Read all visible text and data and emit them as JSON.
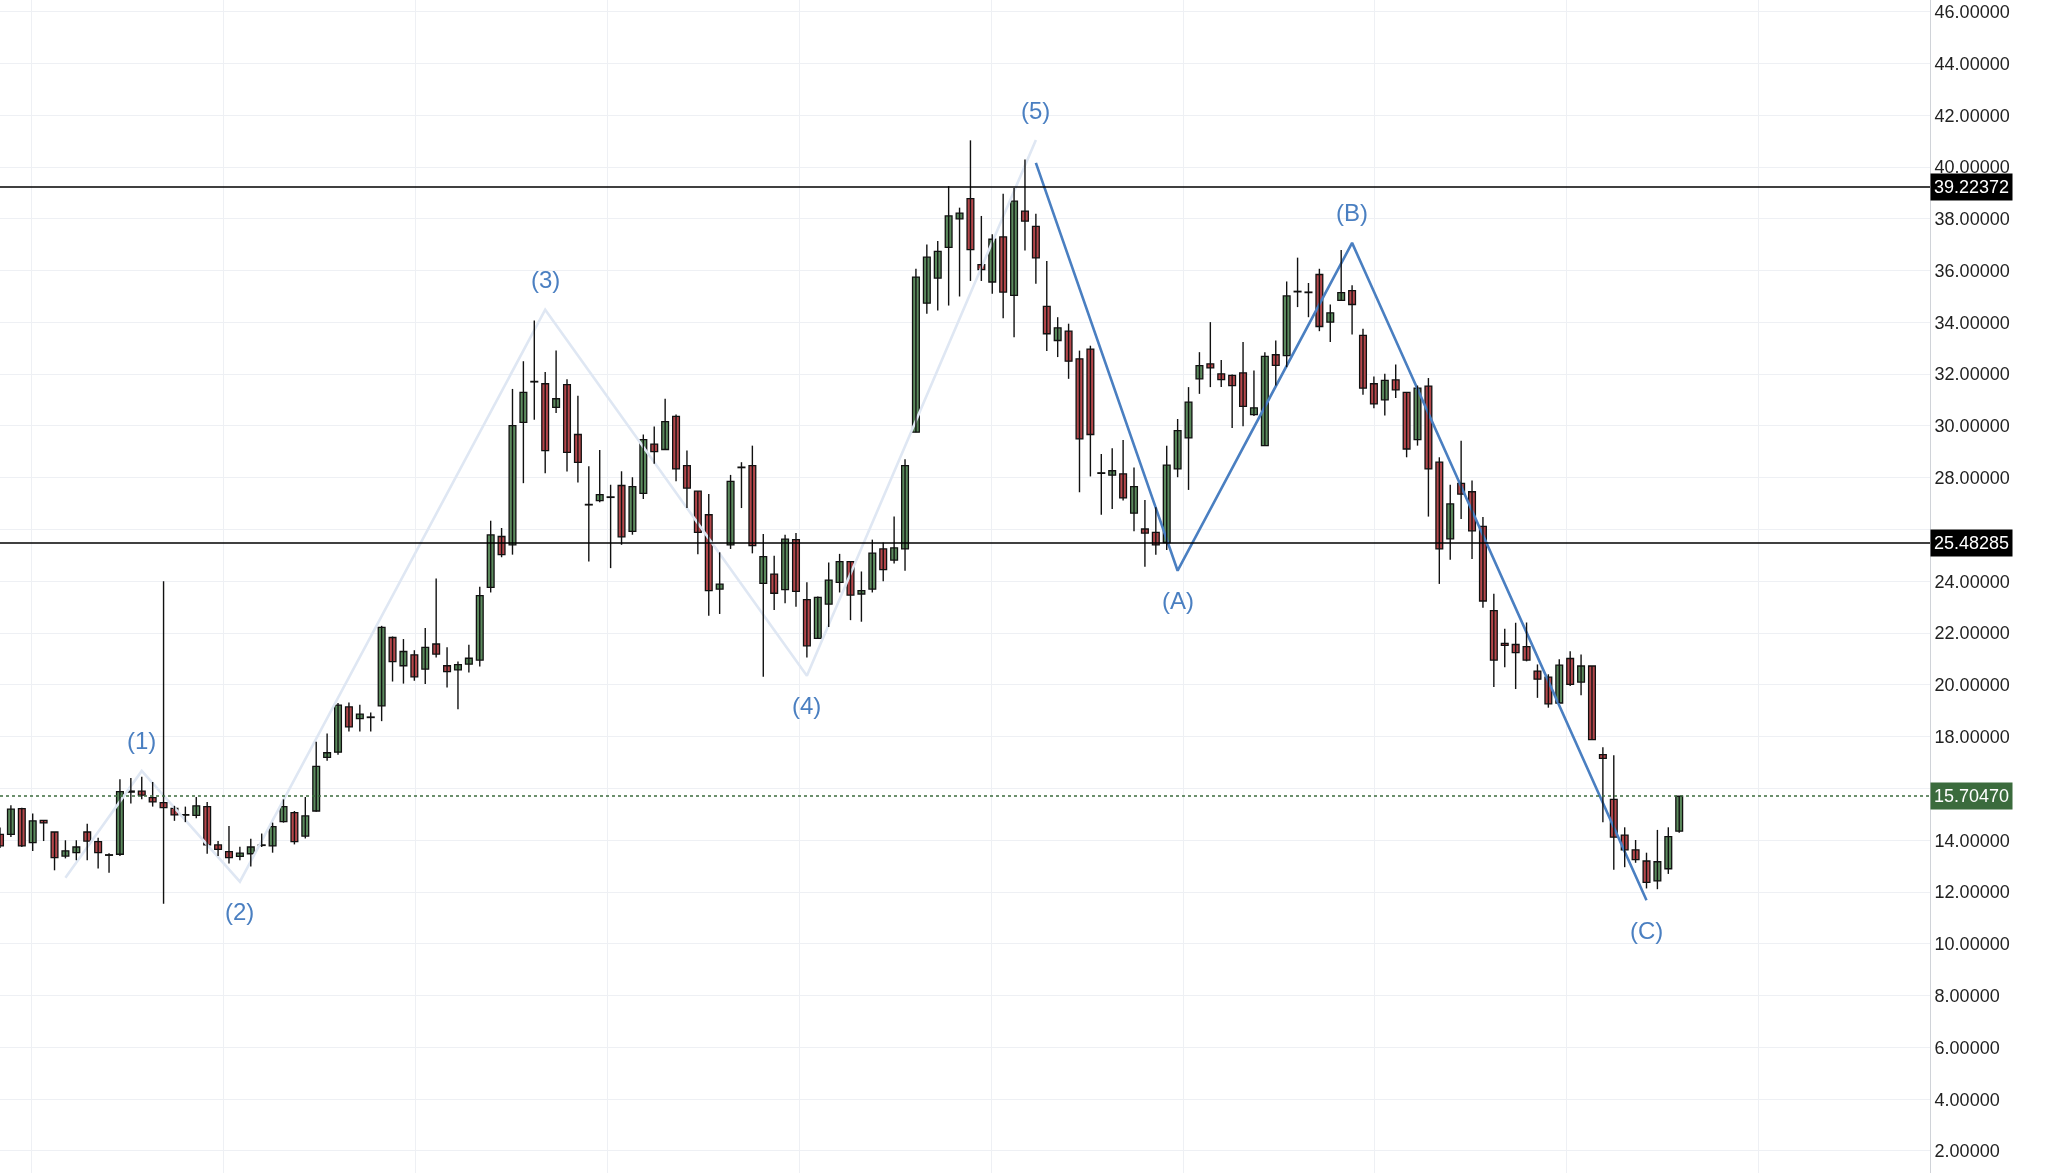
{
  "chart_data": {
    "type": "candlestick",
    "categories": [
      null,
      null,
      null,
      null,
      null,
      null,
      null,
      null,
      null,
      null,
      null,
      null,
      null,
      null,
      null,
      null,
      null,
      null,
      null,
      null,
      null,
      null,
      null,
      null,
      null,
      null,
      null,
      null,
      null,
      null,
      null,
      null,
      null,
      null,
      null,
      null,
      null,
      null,
      null,
      null,
      null,
      null,
      null,
      null,
      null,
      null,
      null,
      null,
      null,
      null,
      null,
      null,
      null,
      null,
      null,
      null,
      null,
      null,
      null,
      null,
      null,
      null,
      null,
      null,
      null,
      null,
      null,
      null,
      null,
      null,
      null,
      null,
      null,
      null,
      null,
      null,
      null,
      null,
      null,
      null,
      null,
      null,
      null,
      null,
      null,
      null,
      null,
      null,
      null,
      null,
      null,
      null,
      null,
      null,
      null,
      null,
      null,
      null,
      null,
      null,
      null,
      null,
      null,
      null,
      null,
      null,
      null,
      null,
      null,
      null,
      null,
      null,
      null,
      null,
      null,
      null,
      null,
      null,
      null,
      null,
      null,
      null,
      null,
      null,
      null,
      null,
      null,
      null,
      null,
      null,
      null,
      null,
      null,
      null,
      null,
      null,
      null,
      null,
      null,
      null,
      null,
      null,
      null,
      null,
      null,
      null,
      null,
      null,
      null,
      null,
      null,
      null,
      null,
      null,
      null,
      null,
      null,
      null,
      null,
      null,
      null,
      null,
      null,
      null,
      null,
      null,
      null,
      null,
      null,
      null,
      null,
      null,
      null,
      null,
      null,
      null,
      null,
      null
    ],
    "ohlc": [
      [
        14.23,
        14.49,
        13.7,
        13.78
      ],
      [
        14.23,
        15.35,
        14.13,
        15.2
      ],
      [
        15.22,
        15.26,
        13.74,
        13.78
      ],
      [
        13.91,
        15.03,
        13.59,
        14.75
      ],
      [
        14.77,
        14.77,
        13.97,
        14.67
      ],
      [
        14.32,
        14.32,
        12.84,
        13.33
      ],
      [
        13.39,
        14.0,
        13.3,
        13.59
      ],
      [
        13.52,
        14.0,
        13.23,
        13.74
      ],
      [
        14.32,
        14.64,
        13.23,
        13.97
      ],
      [
        13.95,
        14.1,
        12.91,
        13.52
      ],
      [
        13.42,
        13.5,
        12.75,
        13.44
      ],
      [
        13.46,
        16.36,
        13.39,
        15.88
      ],
      [
        15.86,
        16.4,
        15.42,
        15.9
      ],
      [
        15.9,
        16.45,
        15.58,
        15.74
      ],
      [
        15.65,
        16.25,
        15.3,
        15.48
      ],
      [
        15.45,
        24.0,
        11.55,
        15.26
      ],
      [
        15.23,
        15.33,
        14.75,
        14.98
      ],
      [
        14.97,
        15.3,
        14.7,
        14.99
      ],
      [
        14.96,
        15.67,
        14.85,
        15.33
      ],
      [
        15.3,
        15.48,
        13.48,
        13.82
      ],
      [
        13.82,
        13.97,
        13.39,
        13.65
      ],
      [
        13.56,
        14.55,
        13.1,
        13.33
      ],
      [
        13.38,
        13.75,
        13.23,
        13.5
      ],
      [
        13.48,
        14.06,
        12.99,
        13.74
      ],
      [
        13.8,
        14.26,
        13.74,
        13.82
      ],
      [
        13.78,
        14.68,
        13.52,
        14.53
      ],
      [
        14.72,
        15.58,
        14.68,
        15.3
      ],
      [
        15.07,
        15.13,
        13.84,
        13.95
      ],
      [
        14.16,
        15.67,
        14.07,
        14.94
      ],
      [
        15.13,
        17.8,
        15.1,
        16.85
      ],
      [
        17.2,
        18.12,
        17.07,
        17.38
      ],
      [
        17.4,
        19.3,
        17.3,
        19.22
      ],
      [
        19.15,
        19.32,
        18.2,
        18.38
      ],
      [
        18.7,
        19.23,
        18.2,
        18.87
      ],
      [
        18.74,
        18.93,
        18.2,
        18.76
      ],
      [
        19.19,
        22.28,
        18.6,
        22.22
      ],
      [
        21.83,
        21.87,
        20.13,
        20.9
      ],
      [
        20.74,
        21.77,
        20.05,
        21.29
      ],
      [
        21.16,
        21.34,
        20.16,
        20.31
      ],
      [
        20.61,
        22.2,
        20.03,
        21.45
      ],
      [
        21.58,
        24.11,
        21.06,
        21.19
      ],
      [
        20.74,
        21.45,
        19.9,
        20.51
      ],
      [
        20.58,
        20.9,
        19.06,
        20.78
      ],
      [
        20.8,
        21.55,
        20.48,
        21.03
      ],
      [
        20.96,
        23.79,
        20.71,
        23.45
      ],
      [
        23.77,
        26.34,
        23.57,
        25.79
      ],
      [
        25.73,
        26.06,
        24.93,
        25.03
      ],
      [
        25.41,
        31.43,
        25.03,
        30.01
      ],
      [
        30.14,
        32.5,
        27.79,
        31.3
      ],
      [
        31.7,
        34.07,
        30.24,
        31.72
      ],
      [
        31.63,
        32.08,
        28.17,
        29.05
      ],
      [
        30.72,
        32.91,
        30.5,
        31.05
      ],
      [
        31.6,
        31.8,
        28.24,
        28.98
      ],
      [
        29.67,
        31.17,
        27.82,
        28.59
      ],
      [
        26.95,
        28.44,
        24.77,
        26.97
      ],
      [
        27.12,
        29.07,
        27.05,
        27.35
      ],
      [
        27.24,
        27.73,
        24.51,
        27.26
      ],
      [
        27.7,
        28.25,
        25.41,
        25.72
      ],
      [
        25.93,
        28.02,
        25.8,
        27.66
      ],
      [
        27.4,
        29.67,
        27.18,
        29.47
      ],
      [
        29.3,
        29.98,
        28.54,
        29.01
      ],
      [
        29.09,
        31.05,
        29.09,
        30.17
      ],
      [
        30.37,
        30.44,
        27.86,
        28.34
      ],
      [
        28.47,
        29.05,
        26.83,
        27.6
      ],
      [
        27.48,
        27.48,
        25.05,
        25.89
      ],
      [
        26.57,
        27.37,
        22.67,
        23.64
      ],
      [
        23.7,
        25.12,
        22.74,
        23.89
      ],
      [
        25.41,
        28.11,
        25.25,
        27.86
      ],
      [
        28.39,
        28.6,
        26.83,
        28.41
      ],
      [
        28.47,
        29.24,
        25.08,
        25.38
      ],
      [
        23.92,
        25.83,
        20.31,
        24.95
      ],
      [
        24.28,
        24.99,
        22.89,
        23.54
      ],
      [
        23.68,
        25.8,
        23.15,
        25.63
      ],
      [
        25.61,
        25.87,
        23.02,
        23.61
      ],
      [
        23.29,
        23.96,
        21.06,
        21.51
      ],
      [
        21.8,
        23.41,
        21.8,
        23.38
      ],
      [
        23.12,
        24.73,
        22.24,
        24.05
      ],
      [
        23.96,
        25.06,
        23.57,
        24.76
      ],
      [
        24.76,
        24.76,
        22.5,
        23.47
      ],
      [
        23.51,
        24.38,
        22.44,
        23.64
      ],
      [
        23.7,
        25.61,
        23.57,
        25.09
      ],
      [
        25.25,
        25.5,
        24.0,
        24.45
      ],
      [
        24.82,
        26.5,
        24.69,
        25.29
      ],
      [
        25.25,
        28.71,
        24.41,
        28.47
      ],
      [
        29.76,
        36.07,
        29.76,
        35.75
      ],
      [
        34.74,
        37.01,
        34.33,
        36.52
      ],
      [
        35.71,
        37.14,
        34.46,
        36.74
      ],
      [
        36.9,
        39.26,
        34.65,
        38.11
      ],
      [
        38.0,
        38.43,
        35.0,
        38.22
      ],
      [
        38.78,
        41.03,
        35.6,
        36.81
      ],
      [
        36.23,
        38.11,
        35.6,
        36.04
      ],
      [
        35.56,
        37.4,
        35.11,
        37.21
      ],
      [
        37.3,
        38.97,
        34.16,
        35.17
      ],
      [
        35.04,
        39.19,
        33.43,
        38.68
      ],
      [
        38.3,
        40.29,
        36.78,
        37.91
      ],
      [
        37.71,
        38.2,
        35.49,
        36.49
      ],
      [
        34.62,
        36.37,
        32.89,
        33.56
      ],
      [
        33.3,
        34.2,
        32.66,
        33.79
      ],
      [
        33.66,
        33.95,
        31.82,
        32.5
      ],
      [
        32.59,
        32.91,
        27.44,
        29.5
      ],
      [
        32.97,
        33.1,
        28.05,
        29.67
      ],
      [
        28.17,
        28.92,
        26.57,
        28.19
      ],
      [
        28.1,
        29.14,
        26.79,
        28.27
      ],
      [
        28.15,
        29.46,
        27.12,
        27.22
      ],
      [
        26.63,
        28.4,
        25.93,
        27.66
      ],
      [
        26.02,
        27.14,
        24.56,
        25.86
      ],
      [
        25.89,
        26.86,
        25.03,
        25.41
      ],
      [
        25.5,
        29.24,
        25.21,
        28.49
      ],
      [
        28.34,
        30.27,
        28.02,
        29.82
      ],
      [
        29.54,
        31.5,
        27.53,
        30.92
      ],
      [
        31.82,
        32.85,
        31.24,
        32.33
      ],
      [
        32.4,
        34.01,
        31.5,
        32.24
      ],
      [
        32.01,
        32.55,
        31.5,
        31.79
      ],
      [
        31.95,
        31.99,
        29.92,
        31.56
      ],
      [
        32.05,
        33.24,
        29.99,
        30.76
      ],
      [
        30.44,
        32.14,
        30.38,
        30.7
      ],
      [
        29.24,
        32.85,
        29.24,
        32.69
      ],
      [
        32.75,
        33.3,
        31.56,
        32.34
      ],
      [
        32.72,
        35.58,
        32.27,
        35.02
      ],
      [
        35.18,
        36.5,
        34.59,
        35.2
      ],
      [
        35.15,
        35.52,
        34.2,
        35.17
      ],
      [
        35.85,
        36.07,
        33.66,
        33.84
      ],
      [
        34.01,
        34.69,
        33.24,
        34.37
      ],
      [
        34.85,
        36.8,
        34.85,
        35.15
      ],
      [
        35.23,
        35.43,
        33.53,
        34.69
      ],
      [
        33.5,
        33.75,
        31.21,
        31.46
      ],
      [
        31.63,
        31.91,
        30.68,
        30.85
      ],
      [
        31.01,
        32.02,
        30.4,
        31.76
      ],
      [
        31.78,
        32.37,
        31.08,
        31.39
      ],
      [
        31.3,
        31.3,
        28.79,
        29.11
      ],
      [
        29.47,
        31.56,
        29.24,
        31.46
      ],
      [
        31.54,
        31.85,
        26.5,
        28.34
      ],
      [
        28.6,
        28.79,
        23.9,
        25.25
      ],
      [
        25.64,
        27.73,
        24.83,
        26.99
      ],
      [
        27.78,
        29.43,
        26.41,
        27.37
      ],
      [
        27.46,
        27.89,
        24.86,
        25.95
      ],
      [
        26.12,
        26.48,
        22.98,
        23.24
      ],
      [
        22.87,
        23.52,
        19.92,
        20.96
      ],
      [
        21.6,
        22.17,
        20.68,
        21.53
      ],
      [
        21.56,
        22.4,
        19.84,
        21.25
      ],
      [
        21.48,
        22.41,
        20.91,
        20.96
      ],
      [
        20.53,
        20.79,
        19.5,
        20.22
      ],
      [
        20.3,
        20.41,
        19.12,
        19.27
      ],
      [
        19.3,
        20.99,
        19.3,
        20.76
      ],
      [
        21.02,
        21.3,
        19.96,
        20.02
      ],
      [
        20.11,
        21.17,
        19.6,
        20.73
      ],
      [
        20.73,
        20.73,
        17.89,
        17.89
      ],
      [
        17.31,
        17.59,
        14.7,
        17.16
      ],
      [
        15.58,
        17.28,
        12.86,
        14.12
      ],
      [
        14.2,
        14.5,
        12.96,
        13.63
      ],
      [
        13.63,
        14.01,
        13.13,
        13.25
      ],
      [
        13.2,
        13.52,
        12.14,
        12.37
      ],
      [
        12.43,
        14.4,
        12.11,
        13.17
      ],
      [
        12.9,
        14.5,
        12.7,
        14.14
      ],
      [
        14.35,
        15.7,
        14.29,
        15.7
      ],
      null,
      null,
      null,
      null,
      null,
      null,
      null,
      null,
      null,
      null,
      null,
      null,
      null,
      null,
      null,
      null,
      null,
      null,
      null,
      null,
      null,
      null,
      null
    ],
    "colors": [
      "#b5474b",
      "#5b8a5d",
      "#b5474b",
      "#5b8a5d",
      "#b5474b",
      "#b5474b",
      "#5b8a5d",
      "#5b8a5d",
      "#b5474b",
      "#b5474b",
      "#5b8a5d",
      "#5b8a5d",
      "#5b8a5d",
      "#b5474b",
      "#b5474b",
      "#b5474b",
      "#b5474b",
      "#5b8a5d",
      "#5b8a5d",
      "#b5474b",
      "#b5474b",
      "#b5474b",
      "#5b8a5d",
      "#5b8a5d",
      "#5b8a5d",
      "#5b8a5d",
      "#5b8a5d",
      "#b5474b",
      "#5b8a5d",
      "#5b8a5d",
      "#5b8a5d",
      "#5b8a5d",
      "#b5474b",
      "#5b8a5d",
      "#5b8a5d",
      "#5b8a5d",
      "#b5474b",
      "#5b8a5d",
      "#b5474b",
      "#5b8a5d",
      "#b5474b",
      "#b5474b",
      "#5b8a5d",
      "#5b8a5d",
      "#5b8a5d",
      "#5b8a5d",
      "#b5474b",
      "#5b8a5d",
      "#5b8a5d",
      "#5b8a5d",
      "#b5474b",
      "#5b8a5d",
      "#b5474b",
      "#b5474b",
      "#5b8a5d",
      "#5b8a5d",
      "#5b8a5d",
      "#b5474b",
      "#5b8a5d",
      "#5b8a5d",
      "#b5474b",
      "#5b8a5d",
      "#b5474b",
      "#b5474b",
      "#b5474b",
      "#b5474b",
      "#5b8a5d",
      "#5b8a5d",
      "#5b8a5d",
      "#b5474b",
      "#5b8a5d",
      "#b5474b",
      "#5b8a5d",
      "#b5474b",
      "#b5474b",
      "#5b8a5d",
      "#5b8a5d",
      "#5b8a5d",
      "#b5474b",
      "#5b8a5d",
      "#5b8a5d",
      "#b5474b",
      "#5b8a5d",
      "#5b8a5d",
      "#5b8a5d",
      "#5b8a5d",
      "#5b8a5d",
      "#5b8a5d",
      "#5b8a5d",
      "#b5474b",
      "#b5474b",
      "#5b8a5d",
      "#b5474b",
      "#5b8a5d",
      "#b5474b",
      "#b5474b",
      "#b5474b",
      "#5b8a5d",
      "#b5474b",
      "#b5474b",
      "#b5474b",
      "#5b8a5d",
      "#5b8a5d",
      "#b5474b",
      "#5b8a5d",
      "#b5474b",
      "#b5474b",
      "#5b8a5d",
      "#5b8a5d",
      "#5b8a5d",
      "#5b8a5d",
      "#b5474b",
      "#b5474b",
      "#b5474b",
      "#b5474b",
      "#5b8a5d",
      "#5b8a5d",
      "#b5474b",
      "#5b8a5d",
      "#5b8a5d",
      "#5b8a5d",
      "#b5474b",
      "#5b8a5d",
      "#5b8a5d",
      "#b5474b",
      "#b5474b",
      "#b5474b",
      "#5b8a5d",
      "#b5474b",
      "#b5474b",
      "#5b8a5d",
      "#b5474b",
      "#b5474b",
      "#5b8a5d",
      "#b5474b",
      "#b5474b",
      "#b5474b",
      "#b5474b",
      "#b5474b",
      "#b5474b",
      "#b5474b",
      "#b5474b",
      "#b5474b",
      "#5b8a5d",
      "#b5474b",
      "#5b8a5d",
      "#b5474b",
      "#b5474b",
      "#b5474b",
      "#b5474b",
      "#b5474b",
      "#b5474b",
      "#5b8a5d",
      "#5b8a5d",
      "#5b8a5d",
      null,
      null,
      null,
      null,
      null,
      null,
      null,
      null,
      null,
      null,
      null,
      null,
      null,
      null,
      null,
      null,
      null,
      null,
      null,
      null,
      null,
      null,
      null
    ],
    "series": [
      {
        "type": "line",
        "color": "#dfe7f3",
        "values": [
          null,
          null,
          null,
          null,
          null,
          null,
          12.55,
          null,
          null,
          null,
          null,
          null,
          null,
          16.68,
          null,
          null,
          null,
          null,
          null,
          null,
          null,
          null,
          12.4,
          null,
          null,
          null,
          null,
          null,
          null,
          null,
          null,
          null,
          null,
          null,
          null,
          null,
          null,
          null,
          null,
          null,
          null,
          null,
          null,
          null,
          null,
          null,
          null,
          null,
          null,
          null,
          34.49,
          null,
          null,
          null,
          null,
          null,
          null,
          null,
          null,
          null,
          null,
          null,
          null,
          null,
          null,
          null,
          null,
          null,
          null,
          null,
          null,
          null,
          null,
          null,
          20.35,
          null,
          null,
          null,
          null,
          null,
          null,
          null,
          null,
          null,
          null,
          null,
          null,
          null,
          null,
          null,
          null,
          null,
          null,
          null,
          null,
          41.04,
          null,
          null,
          null,
          null,
          null,
          null,
          null,
          null,
          null,
          null,
          null,
          null,
          null,
          null,
          null,
          null,
          null,
          null,
          null,
          null,
          null,
          null,
          null,
          null,
          null,
          null,
          null,
          null,
          null,
          null,
          null,
          null,
          null,
          null,
          null,
          null,
          null,
          null,
          null,
          null,
          null,
          null,
          null,
          null,
          null,
          null,
          null,
          null,
          null,
          null,
          null,
          null,
          null,
          null,
          null,
          null,
          null,
          null,
          null,
          null,
          null,
          null,
          null,
          null,
          null,
          null,
          null,
          null,
          null,
          null,
          null,
          null,
          null,
          null,
          null,
          null,
          null,
          null,
          null,
          null,
          null,
          null
        ]
      },
      {
        "type": "line",
        "color": "#4a7fc1",
        "values": [
          null,
          null,
          null,
          null,
          null,
          null,
          null,
          null,
          null,
          null,
          null,
          null,
          null,
          null,
          null,
          null,
          null,
          null,
          null,
          null,
          null,
          null,
          null,
          null,
          null,
          null,
          null,
          null,
          null,
          null,
          null,
          null,
          null,
          null,
          null,
          null,
          null,
          null,
          null,
          null,
          null,
          null,
          null,
          null,
          null,
          null,
          null,
          null,
          null,
          null,
          null,
          null,
          null,
          null,
          null,
          null,
          null,
          null,
          null,
          null,
          null,
          null,
          null,
          null,
          null,
          null,
          null,
          null,
          null,
          null,
          null,
          null,
          null,
          null,
          null,
          null,
          null,
          null,
          null,
          null,
          null,
          null,
          null,
          null,
          null,
          null,
          null,
          null,
          null,
          null,
          null,
          null,
          null,
          null,
          null,
          40.16,
          null,
          null,
          null,
          null,
          null,
          null,
          null,
          null,
          null,
          null,
          null,
          null,
          24.41,
          null,
          null,
          null,
          null,
          null,
          null,
          null,
          null,
          null,
          null,
          null,
          null,
          null,
          null,
          null,
          37.07,
          null,
          null,
          null,
          null,
          null,
          null,
          null,
          null,
          null,
          null,
          null,
          null,
          null,
          null,
          null,
          null,
          null,
          null,
          null,
          null,
          null,
          null,
          null,
          null,
          null,
          null,
          11.68,
          null,
          null,
          null,
          null,
          null,
          null,
          null,
          null,
          null,
          null,
          null,
          null,
          null,
          null,
          null,
          null,
          null,
          null,
          null,
          null,
          null,
          null,
          null,
          null,
          null,
          null
        ]
      }
    ],
    "annotations": [
      "(1)",
      "(2)",
      "(3)",
      "(4)",
      "(5)",
      "(A)",
      "(B)",
      "(C)"
    ],
    "ref_lines": [
      {
        "axis": "y",
        "value": 39.22372,
        "label": "39.22372",
        "color": "#000000",
        "line_style": "solid"
      },
      {
        "axis": "y",
        "value": 25.48285,
        "label": "25.48285",
        "color": "#000000",
        "line_style": "solid"
      },
      {
        "axis": "y",
        "value": 15.7047,
        "label": "15.70470",
        "color": "#3b6b3d",
        "line_style": "dotted"
      }
    ],
    "ylim": [
      1.15,
      46.45
    ],
    "yticks": [
      {
        "value": 2,
        "label": "2.00000"
      },
      {
        "value": 4,
        "label": "4.00000"
      },
      {
        "value": 6,
        "label": "6.00000"
      },
      {
        "value": 8,
        "label": "8.00000"
      },
      {
        "value": 10,
        "label": "10.00000"
      },
      {
        "value": 12,
        "label": "12.00000"
      },
      {
        "value": 14,
        "label": "14.00000"
      },
      {
        "value": 16,
        "label": null
      },
      {
        "value": 18,
        "label": "18.00000"
      },
      {
        "value": 20,
        "label": "20.00000"
      },
      {
        "value": 22,
        "label": "22.00000"
      },
      {
        "value": 24,
        "label": "24.00000"
      },
      {
        "value": 26,
        "label": null
      },
      {
        "value": 28,
        "label": "28.00000"
      },
      {
        "value": 30,
        "label": "30.00000"
      },
      {
        "value": 32,
        "label": "32.00000"
      },
      {
        "value": 34,
        "label": "34.00000"
      },
      {
        "value": 36,
        "label": "36.00000"
      },
      {
        "value": 38,
        "label": "38.00000"
      },
      {
        "value": 40,
        "label": "40.00000"
      },
      {
        "value": 42,
        "label": "42.00000"
      },
      {
        "value": 44,
        "label": "44.00000"
      },
      {
        "value": 46,
        "label": "46.00000"
      }
    ],
    "tick_labels": "y",
    "grid": true,
    "marker": "none",
    "line_style": "solid"
  }
}
